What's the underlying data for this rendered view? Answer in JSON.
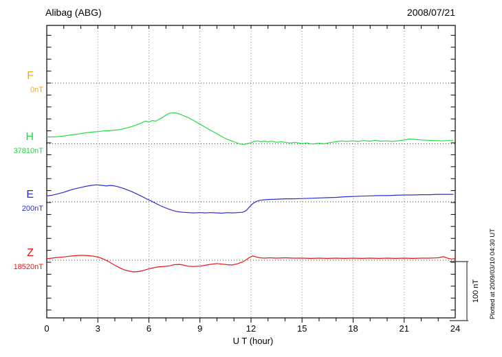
{
  "header": {
    "title": "Alibag (ABG)",
    "date": "2008/07/21"
  },
  "axes": {
    "x_label": "U T (hour)",
    "x_tick_labels": [
      "0",
      "3",
      "6",
      "9",
      "12",
      "15",
      "18",
      "21",
      "24"
    ]
  },
  "scale_bar": {
    "label": "100 nT",
    "nT": 100
  },
  "footer_note": "Plotted at 2009/03/10 04:30 UT",
  "colors": {
    "axis": "#000000",
    "grid": "#909090",
    "baseline_dots": "#3c3c3c",
    "scale_bar": "#555555"
  },
  "chart_data": {
    "type": "line",
    "title": "Alibag (ABG)",
    "subtitle_date": "2008/07/21",
    "x_label": "U T (hour)",
    "x_range_hours": [
      0,
      24
    ],
    "x_ticks": [
      0,
      3,
      6,
      9,
      12,
      15,
      18,
      21,
      24
    ],
    "grid_hours": [
      3,
      6,
      9,
      12,
      15,
      18,
      21
    ],
    "y_units": "nT offset from each component baseline",
    "y_tick_interval_nT": 20,
    "scale_bar_nT": 100,
    "legend_position": "left margin, one label per stacked trace",
    "series": [
      {
        "name": "F",
        "baseline_label": "0nT",
        "color": "#FFA500",
        "points": []
      },
      {
        "name": "H",
        "baseline_label": "37810nT",
        "color": "#21DB45",
        "points": [
          [
            0,
            11.5
          ],
          [
            0.3,
            11.5
          ],
          [
            0.6,
            12
          ],
          [
            1,
            13
          ],
          [
            1.3,
            14.5
          ],
          [
            1.6,
            15.5
          ],
          [
            2,
            17
          ],
          [
            2.3,
            18.5
          ],
          [
            2.6,
            19.5
          ],
          [
            3,
            20.5
          ],
          [
            3.3,
            21.5
          ],
          [
            3.6,
            22
          ],
          [
            4,
            23
          ],
          [
            4.3,
            24
          ],
          [
            4.6,
            26
          ],
          [
            5,
            29
          ],
          [
            5.3,
            32
          ],
          [
            5.6,
            35.5
          ],
          [
            5.8,
            38
          ],
          [
            6,
            36.5
          ],
          [
            6.2,
            39
          ],
          [
            6.4,
            38
          ],
          [
            6.6,
            41
          ],
          [
            6.8,
            44
          ],
          [
            7,
            48
          ],
          [
            7.2,
            51
          ],
          [
            7.4,
            52
          ],
          [
            7.6,
            51.5
          ],
          [
            7.8,
            50
          ],
          [
            8,
            47.5
          ],
          [
            8.3,
            44
          ],
          [
            8.6,
            39.5
          ],
          [
            9,
            33
          ],
          [
            9.3,
            28
          ],
          [
            9.6,
            23
          ],
          [
            10,
            17
          ],
          [
            10.3,
            12
          ],
          [
            10.6,
            7.5
          ],
          [
            11,
            3.5
          ],
          [
            11.2,
            1
          ],
          [
            11.4,
            -0.5
          ],
          [
            11.6,
            -1
          ],
          [
            11.8,
            0.5
          ],
          [
            12,
            2
          ],
          [
            12.2,
            4
          ],
          [
            12.4,
            5
          ],
          [
            12.6,
            3.5
          ],
          [
            12.8,
            4.5
          ],
          [
            13,
            3
          ],
          [
            13.2,
            4.5
          ],
          [
            13.5,
            2.5
          ],
          [
            13.8,
            3.5
          ],
          [
            14,
            2.5
          ],
          [
            14.3,
            1.5
          ],
          [
            14.6,
            2.5
          ],
          [
            15,
            0.5
          ],
          [
            15.3,
            1.5
          ],
          [
            15.6,
            -0.5
          ],
          [
            16,
            1
          ],
          [
            16.3,
            0
          ],
          [
            16.6,
            2
          ],
          [
            17,
            3.5
          ],
          [
            17.3,
            5
          ],
          [
            17.6,
            4
          ],
          [
            18,
            5
          ],
          [
            18.3,
            4
          ],
          [
            18.6,
            5.5
          ],
          [
            19,
            4.5
          ],
          [
            19.3,
            6
          ],
          [
            19.6,
            4.5
          ],
          [
            20,
            5
          ],
          [
            20.3,
            4
          ],
          [
            20.6,
            5
          ],
          [
            21,
            6.5
          ],
          [
            21.3,
            8
          ],
          [
            21.6,
            7.5
          ],
          [
            22,
            6.5
          ],
          [
            22.4,
            6
          ],
          [
            22.8,
            5.5
          ],
          [
            23.2,
            5
          ],
          [
            23.6,
            5.5
          ],
          [
            23.9,
            5.5
          ]
        ]
      },
      {
        "name": "E",
        "baseline_label": "200nT",
        "color": "#2B2BD0",
        "points": [
          [
            0,
            10
          ],
          [
            0.3,
            11
          ],
          [
            0.6,
            13
          ],
          [
            1,
            16
          ],
          [
            1.3,
            19
          ],
          [
            1.6,
            21.5
          ],
          [
            2,
            24
          ],
          [
            2.3,
            26
          ],
          [
            2.6,
            27.5
          ],
          [
            2.9,
            28.5
          ],
          [
            3.1,
            28
          ],
          [
            3.3,
            27.5
          ],
          [
            3.5,
            26.5
          ],
          [
            3.7,
            27.5
          ],
          [
            3.9,
            27
          ],
          [
            4.1,
            26
          ],
          [
            4.4,
            23.5
          ],
          [
            4.7,
            20.5
          ],
          [
            5,
            17
          ],
          [
            5.3,
            13
          ],
          [
            5.6,
            9
          ],
          [
            5.9,
            4.5
          ],
          [
            6.2,
            0.5
          ],
          [
            6.5,
            -4
          ],
          [
            6.8,
            -8
          ],
          [
            7.1,
            -11.5
          ],
          [
            7.4,
            -14.5
          ],
          [
            7.7,
            -16.5
          ],
          [
            8,
            -17.5
          ],
          [
            8.3,
            -18
          ],
          [
            8.6,
            -18.5
          ],
          [
            9,
            -18
          ],
          [
            9.3,
            -18.5
          ],
          [
            9.6,
            -18
          ],
          [
            10,
            -18.5
          ],
          [
            10.3,
            -19
          ],
          [
            10.6,
            -18
          ],
          [
            10.9,
            -18.5
          ],
          [
            11.2,
            -18
          ],
          [
            11.5,
            -17.5
          ],
          [
            11.7,
            -15
          ],
          [
            11.9,
            -9
          ],
          [
            12.1,
            -3
          ],
          [
            12.3,
            0.5
          ],
          [
            12.5,
            2.5
          ],
          [
            12.8,
            3.5
          ],
          [
            13.1,
            4
          ],
          [
            13.5,
            4.5
          ],
          [
            14,
            5
          ],
          [
            14.5,
            5
          ],
          [
            15,
            5.5
          ],
          [
            15.5,
            6
          ],
          [
            16,
            6.5
          ],
          [
            16.5,
            7
          ],
          [
            17,
            7.5
          ],
          [
            17.5,
            8.5
          ],
          [
            18,
            9
          ],
          [
            18.5,
            9.5
          ],
          [
            19,
            10
          ],
          [
            19.5,
            10.5
          ],
          [
            20,
            10.5
          ],
          [
            20.5,
            11
          ],
          [
            21,
            11.5
          ],
          [
            21.5,
            11.5
          ],
          [
            22,
            12
          ],
          [
            22.5,
            12
          ],
          [
            23,
            12.5
          ],
          [
            23.5,
            12.5
          ],
          [
            23.9,
            12.5
          ]
        ]
      },
      {
        "name": "Z",
        "baseline_label": "18520nT",
        "color": "#EE1111",
        "points": [
          [
            0,
            2.5
          ],
          [
            0.3,
            3.5
          ],
          [
            0.6,
            4.5
          ],
          [
            1,
            5.5
          ],
          [
            1.3,
            6.5
          ],
          [
            1.6,
            7.5
          ],
          [
            1.9,
            8
          ],
          [
            2.2,
            8
          ],
          [
            2.5,
            7.5
          ],
          [
            2.8,
            6.5
          ],
          [
            3.1,
            4.5
          ],
          [
            3.4,
            1
          ],
          [
            3.7,
            -3.5
          ],
          [
            4,
            -8.5
          ],
          [
            4.3,
            -13
          ],
          [
            4.6,
            -16.5
          ],
          [
            4.9,
            -18.5
          ],
          [
            5.1,
            -19.5
          ],
          [
            5.4,
            -19
          ],
          [
            5.7,
            -17
          ],
          [
            6,
            -14.5
          ],
          [
            6.3,
            -12.5
          ],
          [
            6.6,
            -11
          ],
          [
            6.9,
            -10.5
          ],
          [
            7.2,
            -9.5
          ],
          [
            7.5,
            -7.5
          ],
          [
            7.8,
            -7
          ],
          [
            8,
            -8
          ],
          [
            8.3,
            -10
          ],
          [
            8.6,
            -10.5
          ],
          [
            9,
            -10
          ],
          [
            9.3,
            -8.5
          ],
          [
            9.6,
            -7
          ],
          [
            10,
            -5.5
          ],
          [
            10.3,
            -6.5
          ],
          [
            10.6,
            -7.5
          ],
          [
            10.9,
            -8
          ],
          [
            11.2,
            -6
          ],
          [
            11.5,
            -3
          ],
          [
            11.7,
            0.5
          ],
          [
            11.9,
            4.5
          ],
          [
            12.1,
            7
          ],
          [
            12.3,
            5.5
          ],
          [
            12.5,
            4
          ],
          [
            12.8,
            3.5
          ],
          [
            13.1,
            4
          ],
          [
            13.5,
            3.5
          ],
          [
            14,
            4
          ],
          [
            14.5,
            3.5
          ],
          [
            15,
            3.5
          ],
          [
            15.5,
            3
          ],
          [
            16,
            3.5
          ],
          [
            16.5,
            3
          ],
          [
            17,
            3.5
          ],
          [
            17.5,
            3
          ],
          [
            18,
            3.5
          ],
          [
            18.5,
            3
          ],
          [
            19,
            3.5
          ],
          [
            19.5,
            3
          ],
          [
            20,
            3.5
          ],
          [
            20.5,
            3
          ],
          [
            21,
            3.5
          ],
          [
            21.5,
            3
          ],
          [
            22,
            3.5
          ],
          [
            22.5,
            3.5
          ],
          [
            23,
            4
          ],
          [
            23.3,
            6
          ],
          [
            23.6,
            3
          ],
          [
            23.8,
            2
          ],
          [
            24,
            3
          ]
        ]
      }
    ]
  }
}
